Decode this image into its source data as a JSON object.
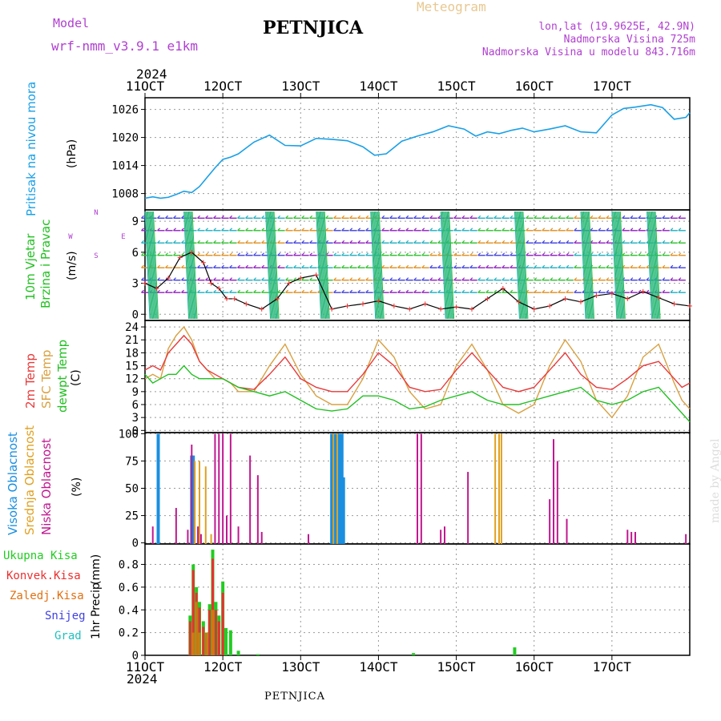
{
  "header": {
    "model_label": "Model",
    "model_name": "wrf-nmm_v3.9.1 e1km",
    "station": "PETNJICA",
    "meteogram": "Meteogram",
    "lonlat": "lon,lat (19.9625E, 42.9N)",
    "elevation": "Nadmorska Visina 725m",
    "model_elevation": "Nadmorska Visina u modelu 843.716m",
    "year_top": "2024",
    "year_bottom": "2024",
    "footer_station": "PETNJICA",
    "signature": "made by Angel"
  },
  "colors": {
    "pressure": "#1aa0e6",
    "temp2m": "#e83a3a",
    "sfc_temp": "#d9a040",
    "dewpt": "#22c022",
    "cloud_high": "#1a8fe0",
    "cloud_mid": "#e0a020",
    "cloud_low": "#c01890",
    "precip_total": "#22cc22",
    "precip_conv": "#e83030",
    "precip_frozen": "#e07010",
    "snow": "#4040e0",
    "graupel": "#20c0c0",
    "wind_label": "#22c022"
  },
  "chart_data": [
    {
      "id": "pressure",
      "type": "line",
      "x_ticks": [
        "11OCT",
        "12OCT",
        "13OCT",
        "14OCT",
        "15OCT",
        "16OCT",
        "17OCT"
      ],
      "ylabel": "Pritisak na nivou mora",
      "unit": "(hPa)",
      "y_ticks": [
        1008,
        1014,
        1020,
        1026
      ],
      "ylim": [
        1004.5,
        1028.5
      ],
      "grid": true,
      "series": [
        {
          "name": "Pritisak na nivou mora",
          "x": [
            0,
            0.1,
            0.2,
            0.3,
            0.4,
            0.5,
            0.6,
            0.7,
            0.8,
            0.9,
            1.0,
            1.1,
            1.2,
            1.4,
            1.6,
            1.8,
            2.0,
            2.2,
            2.4,
            2.6,
            2.8,
            2.95,
            3.1,
            3.3,
            3.5,
            3.7,
            3.9,
            4.1,
            4.25,
            4.4,
            4.55,
            4.7,
            4.85,
            5.0,
            5.2,
            5.4,
            5.6,
            5.8,
            6.0,
            6.15,
            6.3,
            6.5,
            6.65,
            6.8,
            6.95,
            7.0
          ],
          "values": [
            1007,
            1007.3,
            1007,
            1007.2,
            1007.8,
            1008.5,
            1008.2,
            1009.5,
            1011.5,
            1013.5,
            1015.3,
            1015.8,
            1016.5,
            1019,
            1020.5,
            1018.3,
            1018.2,
            1019.8,
            1019.6,
            1019.3,
            1018,
            1016.2,
            1016.5,
            1019.2,
            1020.3,
            1021.2,
            1022.5,
            1021.8,
            1020.3,
            1021.2,
            1020.8,
            1021.5,
            1022,
            1021.2,
            1021.8,
            1022.5,
            1021.2,
            1021,
            1024.8,
            1026.2,
            1026.5,
            1027,
            1026.4,
            1023.9,
            1024.3,
            1025.3
          ]
        }
      ]
    },
    {
      "id": "wind",
      "type": "line",
      "ylabel": "10m Vjetar Brzina i Pravac",
      "unit": "(m/s)",
      "compass": [
        "N",
        "S",
        "W",
        "E"
      ],
      "y_ticks": [
        0,
        3,
        6,
        9
      ],
      "ylim": [
        -0.6,
        10.1
      ],
      "grid": true,
      "series": [
        {
          "name": "speed",
          "x": [
            0,
            0.15,
            0.3,
            0.45,
            0.6,
            0.75,
            0.85,
            0.95,
            1.05,
            1.15,
            1.3,
            1.5,
            1.7,
            1.85,
            2.0,
            2.2,
            2.4,
            2.6,
            2.8,
            3.0,
            3.2,
            3.4,
            3.6,
            3.8,
            4.0,
            4.2,
            4.4,
            4.6,
            4.8,
            5.0,
            5.2,
            5.4,
            5.6,
            5.8,
            6.0,
            6.2,
            6.4,
            6.6,
            6.8,
            7.0
          ],
          "values": [
            3,
            2.5,
            3.5,
            5.5,
            6,
            5,
            3,
            2.5,
            1.5,
            1.5,
            1,
            0.5,
            1.5,
            3,
            3.5,
            3.8,
            0.5,
            0.8,
            1,
            1.3,
            0.8,
            0.5,
            1,
            0.5,
            0.7,
            0.5,
            1.5,
            2.5,
            1.2,
            0.5,
            0.8,
            1.5,
            1.2,
            1.8,
            2,
            1.5,
            2.2,
            1.6,
            1,
            0.8
          ]
        }
      ]
    },
    {
      "id": "temperature",
      "type": "line",
      "ylabels": [
        "2m Temp",
        "SFC Temp",
        "dewpt Temp"
      ],
      "unit": "(C)",
      "y_ticks": [
        0,
        3,
        6,
        9,
        12,
        15,
        18,
        21,
        24
      ],
      "ylim": [
        -0.5,
        25.5
      ],
      "grid": true,
      "series": [
        {
          "name": "2m Temp",
          "x": [
            0,
            0.1,
            0.2,
            0.3,
            0.4,
            0.5,
            0.6,
            0.7,
            0.8,
            0.9,
            1.0,
            1.1,
            1.2,
            1.4,
            1.6,
            1.8,
            2.0,
            2.2,
            2.4,
            2.6,
            2.8,
            3.0,
            3.2,
            3.4,
            3.6,
            3.8,
            4.0,
            4.2,
            4.4,
            4.6,
            4.8,
            5.0,
            5.2,
            5.4,
            5.6,
            5.8,
            6.0,
            6.2,
            6.4,
            6.6,
            6.8,
            6.9,
            7.0
          ],
          "values": [
            14,
            15,
            14,
            18,
            20,
            22,
            20,
            16,
            14,
            13,
            12,
            11,
            10,
            9.5,
            13,
            17,
            12,
            10,
            9,
            9,
            13,
            18,
            15,
            10,
            9,
            9.5,
            14,
            18,
            14,
            10,
            9,
            10,
            14,
            18,
            13,
            10,
            9.5,
            12,
            15,
            16,
            12,
            10,
            11
          ]
        },
        {
          "name": "SFC Temp",
          "x": [
            0,
            0.1,
            0.2,
            0.3,
            0.4,
            0.5,
            0.6,
            0.7,
            0.8,
            0.9,
            1.0,
            1.1,
            1.2,
            1.4,
            1.6,
            1.8,
            2.0,
            2.2,
            2.4,
            2.6,
            2.8,
            3.0,
            3.2,
            3.4,
            3.6,
            3.8,
            4.0,
            4.2,
            4.4,
            4.6,
            4.8,
            5.0,
            5.2,
            5.4,
            5.6,
            5.8,
            6.0,
            6.2,
            6.4,
            6.6,
            6.8,
            6.9,
            7.0
          ],
          "values": [
            12,
            13,
            12,
            19,
            22,
            24,
            21,
            16,
            14,
            12,
            12,
            11,
            9,
            9,
            15,
            20,
            13,
            8,
            6,
            6,
            12,
            21,
            17,
            9,
            5,
            6,
            15,
            20,
            14,
            6,
            4,
            6,
            15,
            21,
            16,
            7,
            3,
            8,
            17,
            20,
            11,
            7,
            5
          ]
        },
        {
          "name": "dewpt Temp",
          "x": [
            0,
            0.1,
            0.2,
            0.3,
            0.4,
            0.5,
            0.6,
            0.7,
            0.8,
            0.9,
            1.0,
            1.1,
            1.2,
            1.4,
            1.6,
            1.8,
            2.0,
            2.2,
            2.4,
            2.6,
            2.8,
            3.0,
            3.2,
            3.4,
            3.6,
            3.8,
            4.0,
            4.2,
            4.4,
            4.6,
            4.8,
            5.0,
            5.2,
            5.4,
            5.6,
            5.8,
            6.0,
            6.2,
            6.4,
            6.6,
            6.8,
            6.9,
            7.0
          ],
          "values": [
            13,
            11,
            12,
            13,
            13,
            15,
            13,
            12,
            12,
            12,
            12,
            11,
            10,
            9,
            8,
            9,
            7,
            5,
            4.5,
            5,
            8,
            8,
            7,
            5,
            5.5,
            7,
            8,
            9,
            7,
            6,
            6,
            7,
            8,
            9,
            10,
            7,
            6,
            7,
            9,
            10,
            6,
            4,
            2
          ]
        }
      ]
    },
    {
      "id": "clouds",
      "type": "bar",
      "ylabels": [
        "Visoka Oblacnost",
        "Srednja Oblacnost",
        "Niska Oblacnost"
      ],
      "unit": "(%)",
      "y_ticks": [
        0,
        25,
        50,
        75,
        100
      ],
      "ylim": [
        -1,
        101
      ],
      "grid": true,
      "series": [
        {
          "name": "Visoka Oblacnost",
          "x": [
            0.17,
            0.6,
            0.62,
            2.4,
            2.45,
            2.5,
            2.53,
            2.55
          ],
          "values": [
            100,
            80,
            80,
            100,
            100,
            100,
            100,
            60
          ]
        },
        {
          "name": "Srednja Oblacnost",
          "x": [
            0.64,
            0.7,
            0.78,
            0.85,
            2.42,
            2.47,
            4.5,
            4.55,
            4.58
          ],
          "values": [
            75,
            75,
            70,
            8,
            100,
            100,
            100,
            100,
            100
          ]
        },
        {
          "name": "Niska Oblacnost",
          "x": [
            0.1,
            0.4,
            0.55,
            0.6,
            0.68,
            0.72,
            0.9,
            0.95,
            1.0,
            1.05,
            1.1,
            1.2,
            1.35,
            1.45,
            1.5,
            2.1,
            3.5,
            3.55,
            3.8,
            3.85,
            4.15,
            5.2,
            5.25,
            5.3,
            5.42,
            6.2,
            6.25,
            6.3,
            6.95
          ],
          "values": [
            15,
            32,
            12,
            90,
            15,
            8,
            100,
            100,
            100,
            25,
            100,
            15,
            80,
            62,
            10,
            8,
            100,
            100,
            12,
            15,
            65,
            40,
            95,
            75,
            22,
            12,
            10,
            10,
            8
          ]
        }
      ]
    },
    {
      "id": "precip",
      "type": "bar",
      "legend": [
        "Ukupna Kisa",
        "Konvek.Kisa",
        "Zaledj.Kisa",
        "Snijeg",
        "Grad"
      ],
      "ylabel": "1hr Precip",
      "unit": "(mm)",
      "y_ticks": [
        0,
        0.2,
        0.4,
        0.6,
        0.8
      ],
      "ylim": [
        0,
        0.98
      ],
      "grid": true,
      "x_ticks": [
        "11OCT",
        "12OCT",
        "13OCT",
        "14OCT",
        "15OCT",
        "16OCT",
        "17OCT"
      ],
      "series": [
        {
          "name": "Ukupna Kisa",
          "x": [
            0.58,
            0.62,
            0.66,
            0.7,
            0.75,
            0.79,
            0.83,
            0.87,
            0.91,
            0.95,
            1.0,
            1.04,
            1.1,
            1.2,
            1.45,
            3.45,
            4.75
          ],
          "values": [
            0.35,
            0.8,
            0.6,
            0.47,
            0.3,
            0.2,
            0.45,
            0.93,
            0.47,
            0.35,
            0.65,
            0.24,
            0.22,
            0.04,
            0.01,
            0.02,
            0.07
          ]
        },
        {
          "name": "Konvek.Kisa",
          "x": [
            0.58,
            0.62,
            0.66,
            0.7,
            0.75,
            0.79,
            0.83,
            0.87,
            0.91,
            0.95,
            1.0
          ],
          "values": [
            0.3,
            0.75,
            0.55,
            0.42,
            0.25,
            0.15,
            0.4,
            0.85,
            0.4,
            0.3,
            0.55
          ]
        },
        {
          "name": "Zaledj.Kisa",
          "x": [
            0.62,
            0.66,
            0.7,
            0.79,
            0.87
          ],
          "values": [
            0.2,
            0.47,
            0.2,
            0.2,
            0.4
          ]
        }
      ]
    }
  ]
}
